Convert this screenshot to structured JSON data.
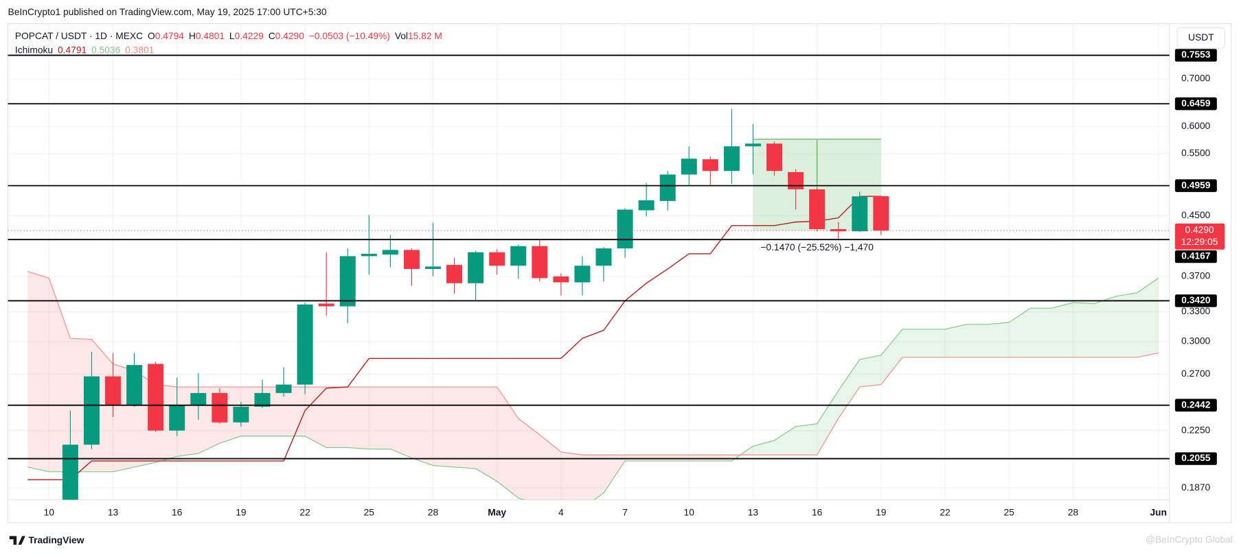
{
  "header": {
    "publisher": "BeInCrypto1 published on TradingView.com, May 19, 2025 17:00 UTC+5:30"
  },
  "toolbar": {
    "currency": "USDT"
  },
  "footer": {
    "logo": "TradingView",
    "watermark": "@BeInCrypto Global"
  },
  "chart_data": {
    "type": "candlestick",
    "title": "POPCAT / USDT · 1D · MEXC",
    "log_scale": true,
    "grid": true,
    "ylim": [
      0.18,
      0.8363
    ],
    "yticks": [
      {
        "value": 0.7,
        "label": "0.7000"
      },
      {
        "value": 0.6,
        "label": "0.6000"
      },
      {
        "value": 0.55,
        "label": "0.5500"
      },
      {
        "value": 0.45,
        "label": "0.4500"
      },
      {
        "value": 0.37,
        "label": "0.3700"
      },
      {
        "value": 0.33,
        "label": "0.3300"
      },
      {
        "value": 0.3,
        "label": "0.3000"
      },
      {
        "value": 0.27,
        "label": "0.2700"
      },
      {
        "value": 0.225,
        "label": "0.2250"
      },
      {
        "value": 0.187,
        "label": "0.1870"
      }
    ],
    "categories": [
      null,
      "10",
      null,
      null,
      "13",
      null,
      null,
      "16",
      null,
      null,
      "19",
      null,
      null,
      "22",
      null,
      null,
      "25",
      null,
      null,
      "28",
      null,
      null,
      "May",
      null,
      null,
      "4",
      null,
      null,
      "7",
      null,
      null,
      "10",
      null,
      null,
      "13",
      null,
      null,
      "16",
      null,
      null,
      "19",
      null,
      null,
      "22",
      null,
      null,
      "25",
      null,
      null,
      "28",
      null,
      null,
      null,
      "Jun"
    ],
    "legend": {
      "ohlc_labels": [
        "O",
        "H",
        "L",
        "C"
      ],
      "change": "−0.0503 (−10.49%)",
      "volume_label": "Vol",
      "volume": "15.82 M"
    },
    "candles": {
      "up_color": "#089981",
      "down_color": "#f23645",
      "open": [
        null,
        null,
        0.178,
        0.215,
        0.268,
        0.244,
        0.279,
        0.225,
        0.244,
        0.254,
        0.231,
        0.243,
        0.254,
        0.261,
        0.339,
        0.336,
        0.395,
        0.397,
        0.403,
        0.379,
        0.384,
        0.362,
        0.4,
        0.383,
        0.408,
        0.37,
        0.363,
        0.383,
        0.405,
        0.458,
        0.472,
        0.514,
        0.54,
        0.52,
        0.563,
        0.568,
        0.518,
        0.49,
        0.431,
        0.428,
        0.4794,
        null,
        null,
        null,
        null,
        null,
        null,
        null,
        null,
        null,
        null,
        null,
        null,
        null
      ],
      "high": [
        null,
        null,
        0.24,
        0.29,
        0.289,
        0.289,
        0.281,
        0.267,
        0.271,
        0.258,
        0.247,
        0.265,
        0.276,
        0.34,
        0.4,
        0.405,
        0.451,
        0.423,
        0.405,
        0.44,
        0.393,
        0.402,
        0.404,
        0.41,
        0.416,
        0.374,
        0.395,
        0.407,
        0.461,
        0.5,
        0.52,
        0.563,
        0.545,
        0.635,
        0.605,
        0.572,
        0.523,
        0.492,
        0.441,
        0.486,
        0.4801,
        null,
        null,
        null,
        null,
        null,
        null,
        null,
        null,
        null,
        null,
        null,
        null,
        null
      ],
      "low": [
        null,
        null,
        0.17,
        0.212,
        0.235,
        0.243,
        0.224,
        0.221,
        0.233,
        0.23,
        0.228,
        0.242,
        0.251,
        0.253,
        0.326,
        0.318,
        0.372,
        0.381,
        0.359,
        0.37,
        0.35,
        0.343,
        0.372,
        0.367,
        0.364,
        0.348,
        0.348,
        0.364,
        0.393,
        0.449,
        0.458,
        0.495,
        0.497,
        0.499,
        0.514,
        0.512,
        0.459,
        0.428,
        0.4167,
        0.427,
        0.4229,
        null,
        null,
        null,
        null,
        null,
        null,
        null,
        null,
        null,
        null,
        null,
        null,
        null
      ],
      "close": [
        null,
        null,
        0.215,
        0.268,
        0.244,
        0.278,
        0.225,
        0.244,
        0.254,
        0.231,
        0.243,
        0.254,
        0.261,
        0.338,
        0.336,
        0.395,
        0.398,
        0.403,
        0.379,
        0.382,
        0.362,
        0.4,
        0.383,
        0.408,
        0.368,
        0.363,
        0.383,
        0.405,
        0.459,
        0.473,
        0.514,
        0.541,
        0.52,
        0.563,
        0.568,
        0.52,
        0.49,
        0.431,
        0.428,
        0.479,
        0.429,
        null,
        null,
        null,
        null,
        null,
        null,
        null,
        null,
        null,
        null,
        null,
        null,
        null
      ],
      "last_close_label": "0.4290",
      "countdown": "12:29:05"
    },
    "ichimoku": {
      "name": "Ichimoku",
      "base": {
        "color": "#b71c1c",
        "values": [
          0.192,
          0.192,
          0.192,
          0.204,
          0.204,
          0.204,
          0.204,
          0.204,
          0.204,
          0.204,
          0.204,
          0.204,
          0.204,
          0.24,
          0.258,
          0.259,
          0.284,
          0.284,
          0.284,
          0.284,
          0.284,
          0.284,
          0.284,
          0.284,
          0.284,
          0.284,
          0.303,
          0.311,
          0.342,
          0.362,
          0.379,
          0.398,
          0.398,
          0.436,
          0.436,
          0.436,
          0.441,
          0.442,
          0.447,
          0.479,
          0.4791,
          null,
          null,
          null,
          null,
          null,
          null,
          null,
          null,
          null,
          null,
          null,
          null,
          null
        ]
      },
      "span_a": {
        "color": "#81c784",
        "fill": "rgba(129,199,132,0.18)",
        "legend_value": 0.5036,
        "values": [
          0.2,
          0.197,
          0.197,
          0.197,
          0.197,
          0.2,
          0.203,
          0.207,
          0.209,
          0.216,
          0.221,
          0.221,
          0.221,
          0.221,
          0.213,
          0.213,
          0.212,
          0.212,
          0.206,
          0.201,
          0.2,
          0.199,
          0.191,
          0.181,
          0.177,
          0.175,
          0.175,
          0.184,
          0.204,
          0.204,
          0.204,
          0.204,
          0.204,
          0.204,
          0.214,
          0.218,
          0.228,
          0.23,
          0.256,
          0.283,
          0.287,
          0.312,
          0.312,
          0.312,
          0.317,
          0.317,
          0.319,
          0.334,
          0.334,
          0.34,
          0.339,
          0.347,
          0.351,
          0.368
        ]
      },
      "span_b": {
        "color": "#f28b82",
        "fill": "rgba(242,139,130,0.2)",
        "legend_value": 0.3801,
        "values": [
          0.376,
          0.368,
          0.303,
          0.302,
          0.279,
          0.273,
          0.261,
          0.259,
          0.259,
          0.259,
          0.259,
          0.259,
          0.259,
          0.259,
          0.259,
          0.259,
          0.259,
          0.259,
          0.259,
          0.259,
          0.259,
          0.259,
          0.259,
          0.234,
          0.222,
          0.21,
          0.208,
          0.208,
          0.208,
          0.208,
          0.208,
          0.208,
          0.208,
          0.208,
          0.208,
          0.208,
          0.208,
          0.208,
          0.234,
          0.259,
          0.261,
          0.285,
          0.285,
          0.285,
          0.285,
          0.285,
          0.285,
          0.285,
          0.285,
          0.285,
          0.285,
          0.285,
          0.285,
          0.289
        ]
      }
    },
    "levels": [
      {
        "value": 0.7553,
        "label": "0.7553"
      },
      {
        "value": 0.6459,
        "label": "0.6459"
      },
      {
        "value": 0.4959,
        "label": "0.4959"
      },
      {
        "value": 0.4167,
        "label": "0.4167"
      },
      {
        "value": 0.342,
        "label": "0.3420"
      },
      {
        "value": 0.2442,
        "label": "0.2442"
      },
      {
        "value": 0.2055,
        "label": "0.2055"
      }
    ],
    "measure": {
      "from": 0.576,
      "to": 0.429,
      "label": "−0.1470 (−25.52%) −1,470",
      "color": "#4caf50"
    }
  }
}
